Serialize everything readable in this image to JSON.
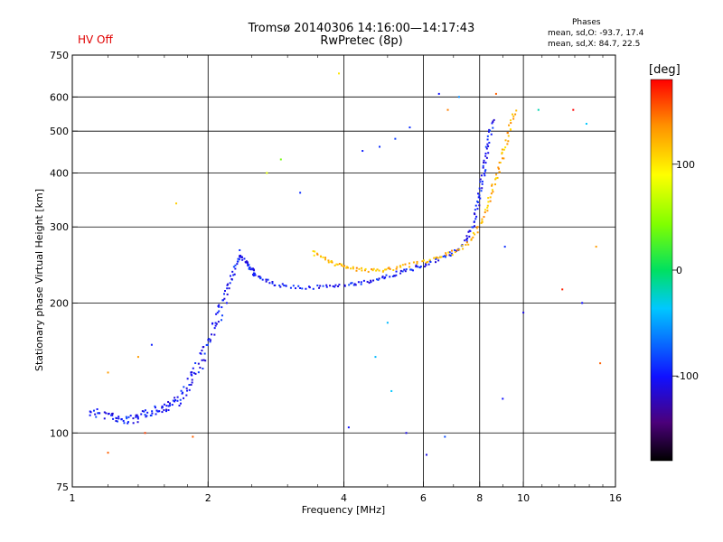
{
  "header": {
    "title_line1": "Tromsø 20140306 14:16:00—14:17:43",
    "title_line2": "RwPretec (8p)",
    "status": "HV Off"
  },
  "phases": {
    "title": "Phases",
    "o_line": "mean, sd,O: -93.7, 17.4",
    "x_line": "mean, sd,X:  84.7, 22.5"
  },
  "colorbar": {
    "unit": "[deg]",
    "ticks": [
      "100",
      "0",
      "-100"
    ],
    "range": [
      -180,
      180
    ]
  },
  "chart_data": {
    "type": "scatter",
    "xlabel": "Frequency [MHz]",
    "ylabel": "Stationary phase Virtual Height [km]",
    "xscale": "log",
    "yscale": "log",
    "xlim": [
      1,
      16
    ],
    "ylim": [
      75,
      750
    ],
    "x_ticks": [
      1,
      2,
      4,
      6,
      8,
      10,
      16
    ],
    "x_tick_labels": [
      "1",
      "2",
      "4",
      "6",
      "8",
      "10",
      "16"
    ],
    "y_ticks": [
      75,
      100,
      200,
      300,
      400,
      500,
      600,
      750
    ],
    "y_tick_labels": [
      "75",
      "100",
      "200",
      "300",
      "400",
      "500",
      "600",
      "750"
    ],
    "grid": true,
    "color_scale": "phase (deg), rainbow from black (-180) through blue, cyan, green, yellow to red (180)",
    "traces": [
      {
        "name": "",
        "phase": -100,
        "points": [
          [
            1.1,
            112
          ],
          [
            1.15,
            111
          ],
          [
            1.2,
            110
          ],
          [
            1.25,
            108
          ],
          [
            1.3,
            107
          ],
          [
            1.35,
            107
          ],
          [
            1.4,
            108
          ],
          [
            1.45,
            110
          ],
          [
            1.5,
            112
          ],
          [
            1.55,
            114
          ],
          [
            1.6,
            113
          ],
          [
            1.65,
            116
          ],
          [
            1.7,
            118
          ],
          [
            1.75,
            122
          ],
          [
            1.8,
            128
          ],
          [
            1.85,
            135
          ],
          [
            1.9,
            142
          ],
          [
            1.95,
            150
          ],
          [
            2.0,
            160
          ],
          [
            2.05,
            172
          ],
          [
            2.1,
            185
          ],
          [
            2.15,
            198
          ],
          [
            2.2,
            212
          ],
          [
            2.25,
            228
          ],
          [
            2.3,
            244
          ],
          [
            2.35,
            258
          ],
          [
            2.4,
            252
          ],
          [
            2.45,
            246
          ],
          [
            2.5,
            238
          ],
          [
            2.55,
            232
          ],
          [
            2.65,
            226
          ],
          [
            2.8,
            221
          ],
          [
            3.0,
            218
          ],
          [
            3.3,
            217
          ],
          [
            3.6,
            218
          ],
          [
            3.9,
            219
          ],
          [
            4.2,
            221
          ],
          [
            4.5,
            224
          ],
          [
            4.8,
            228
          ],
          [
            5.1,
            232
          ],
          [
            5.4,
            236
          ],
          [
            5.7,
            240
          ],
          [
            6.0,
            245
          ],
          [
            6.4,
            251
          ],
          [
            6.8,
            258
          ],
          [
            7.2,
            268
          ],
          [
            7.5,
            280
          ],
          [
            7.7,
            298
          ],
          [
            7.85,
            320
          ],
          [
            7.95,
            345
          ],
          [
            8.05,
            372
          ],
          [
            8.15,
            400
          ],
          [
            8.25,
            430
          ],
          [
            8.35,
            460
          ],
          [
            8.45,
            500
          ],
          [
            8.55,
            540
          ]
        ]
      },
      {
        "name": "",
        "phase": 120,
        "points": [
          [
            3.4,
            262
          ],
          [
            3.6,
            254
          ],
          [
            3.8,
            248
          ],
          [
            4.0,
            243
          ],
          [
            4.2,
            240
          ],
          [
            4.5,
            238
          ],
          [
            4.8,
            238
          ],
          [
            5.1,
            240
          ],
          [
            5.5,
            244
          ],
          [
            6.0,
            249
          ],
          [
            6.5,
            254
          ],
          [
            7.0,
            262
          ],
          [
            7.5,
            275
          ],
          [
            7.9,
            293
          ],
          [
            8.2,
            318
          ],
          [
            8.4,
            345
          ],
          [
            8.6,
            375
          ],
          [
            8.8,
            405
          ],
          [
            9.0,
            440
          ],
          [
            9.2,
            480
          ],
          [
            9.4,
            520
          ],
          [
            9.6,
            560
          ]
        ]
      }
    ],
    "scatter_points": [
      {
        "x": 2.5,
        "y": 240,
        "phase": -95
      },
      {
        "x": 2.35,
        "y": 265,
        "phase": -90
      },
      {
        "x": 2.2,
        "y": 200,
        "phase": -100
      },
      {
        "x": 1.5,
        "y": 160,
        "phase": -95
      },
      {
        "x": 1.4,
        "y": 150,
        "phase": 130
      },
      {
        "x": 1.7,
        "y": 340,
        "phase": 110
      },
      {
        "x": 2.7,
        "y": 400,
        "phase": 80
      },
      {
        "x": 2.9,
        "y": 430,
        "phase": 40
      },
      {
        "x": 3.2,
        "y": 360,
        "phase": -90
      },
      {
        "x": 3.9,
        "y": 680,
        "phase": 100
      },
      {
        "x": 4.4,
        "y": 450,
        "phase": -95
      },
      {
        "x": 4.8,
        "y": 460,
        "phase": -90
      },
      {
        "x": 5.2,
        "y": 480,
        "phase": -85
      },
      {
        "x": 5.6,
        "y": 510,
        "phase": -90
      },
      {
        "x": 6.5,
        "y": 610,
        "phase": -100
      },
      {
        "x": 6.8,
        "y": 560,
        "phase": 140
      },
      {
        "x": 7.2,
        "y": 600,
        "phase": -60
      },
      {
        "x": 8.7,
        "y": 610,
        "phase": 150
      },
      {
        "x": 10.8,
        "y": 560,
        "phase": -20
      },
      {
        "x": 12.9,
        "y": 560,
        "phase": 180
      },
      {
        "x": 13.8,
        "y": 520,
        "phase": -40
      },
      {
        "x": 14.5,
        "y": 270,
        "phase": 130
      },
      {
        "x": 13.5,
        "y": 200,
        "phase": -100
      },
      {
        "x": 12.2,
        "y": 215,
        "phase": 170
      },
      {
        "x": 10.0,
        "y": 190,
        "phase": -110
      },
      {
        "x": 9.1,
        "y": 270,
        "phase": -90
      },
      {
        "x": 9.0,
        "y": 120,
        "phase": -100
      },
      {
        "x": 5.1,
        "y": 125,
        "phase": -40
      },
      {
        "x": 4.7,
        "y": 150,
        "phase": -45
      },
      {
        "x": 5.5,
        "y": 100,
        "phase": -110
      },
      {
        "x": 6.1,
        "y": 89,
        "phase": -110
      },
      {
        "x": 4.1,
        "y": 103,
        "phase": -100
      },
      {
        "x": 1.2,
        "y": 90,
        "phase": 150
      },
      {
        "x": 1.45,
        "y": 100,
        "phase": 160
      },
      {
        "x": 1.85,
        "y": 98,
        "phase": 150
      },
      {
        "x": 1.2,
        "y": 138,
        "phase": 130
      },
      {
        "x": 5.0,
        "y": 180,
        "phase": -45
      },
      {
        "x": 6.7,
        "y": 98,
        "phase": -80
      },
      {
        "x": 14.8,
        "y": 145,
        "phase": 150
      }
    ]
  }
}
